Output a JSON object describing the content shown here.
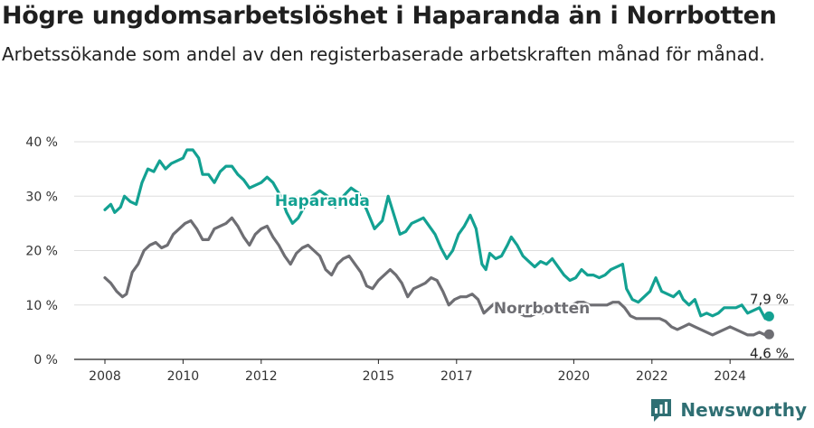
{
  "title": "Högre ungdomsarbetslöshet i Haparanda än i Norrbotten",
  "subtitle": "Arbetssökande som andel av den registerbaserade arbetskraften månad för månad.",
  "brand": "Newsworthy",
  "colors": {
    "haparanda": "#13a192",
    "norrbotten": "#6e6e73",
    "grid": "#dddddd",
    "brand": "#2f6f73"
  },
  "chart_data": {
    "type": "line",
    "title": "Högre ungdomsarbetslöshet i Haparanda än i Norrbotten",
    "xlabel": "",
    "ylabel": "",
    "xlim": [
      2007.8,
      2025.5
    ],
    "ylim": [
      0,
      40
    ],
    "grid": true,
    "y_ticks": [
      {
        "value": 0,
        "label": "0 %"
      },
      {
        "value": 10,
        "label": "10 %"
      },
      {
        "value": 20,
        "label": "20 %"
      },
      {
        "value": 30,
        "label": "30 %"
      },
      {
        "value": 40,
        "label": "40 %"
      }
    ],
    "x_ticks": [
      {
        "value": 2008,
        "label": "2008"
      },
      {
        "value": 2010,
        "label": "2010"
      },
      {
        "value": 2012,
        "label": "2012"
      },
      {
        "value": 2015,
        "label": "2015"
      },
      {
        "value": 2017,
        "label": "2017"
      },
      {
        "value": 2020,
        "label": "2020"
      },
      {
        "value": 2022,
        "label": "2022"
      },
      {
        "value": 2024,
        "label": "2024"
      }
    ],
    "series": [
      {
        "name": "Haparanda",
        "label": "Haparanda",
        "color": "#13a192",
        "end_label": "7,9 %",
        "points": [
          [
            2008.0,
            27.5
          ],
          [
            2008.15,
            28.5
          ],
          [
            2008.25,
            27.0
          ],
          [
            2008.4,
            28.0
          ],
          [
            2008.5,
            30.0
          ],
          [
            2008.65,
            29.0
          ],
          [
            2008.8,
            28.5
          ],
          [
            2008.95,
            32.5
          ],
          [
            2009.1,
            35.0
          ],
          [
            2009.25,
            34.5
          ],
          [
            2009.4,
            36.5
          ],
          [
            2009.55,
            35.0
          ],
          [
            2009.7,
            36.0
          ],
          [
            2009.85,
            36.5
          ],
          [
            2010.0,
            37.0
          ],
          [
            2010.1,
            38.5
          ],
          [
            2010.25,
            38.5
          ],
          [
            2010.4,
            37.0
          ],
          [
            2010.5,
            34.0
          ],
          [
            2010.65,
            34.0
          ],
          [
            2010.8,
            32.5
          ],
          [
            2010.95,
            34.5
          ],
          [
            2011.1,
            35.5
          ],
          [
            2011.25,
            35.5
          ],
          [
            2011.4,
            34.0
          ],
          [
            2011.55,
            33.0
          ],
          [
            2011.7,
            31.5
          ],
          [
            2011.85,
            32.0
          ],
          [
            2012.0,
            32.5
          ],
          [
            2012.15,
            33.5
          ],
          [
            2012.3,
            32.5
          ],
          [
            2012.5,
            30.0
          ],
          [
            2012.65,
            27.0
          ],
          [
            2012.8,
            25.0
          ],
          [
            2012.95,
            26.0
          ],
          [
            2013.1,
            28.0
          ],
          [
            2013.3,
            30.0
          ],
          [
            2013.5,
            31.0
          ],
          [
            2013.7,
            30.0
          ],
          [
            2013.9,
            28.0
          ],
          [
            2014.1,
            30.0
          ],
          [
            2014.3,
            31.5
          ],
          [
            2014.5,
            30.5
          ],
          [
            2014.7,
            27.5
          ],
          [
            2014.9,
            24.0
          ],
          [
            2015.1,
            25.5
          ],
          [
            2015.25,
            30.0
          ],
          [
            2015.4,
            26.5
          ],
          [
            2015.55,
            23.0
          ],
          [
            2015.7,
            23.5
          ],
          [
            2015.85,
            25.0
          ],
          [
            2016.0,
            25.5
          ],
          [
            2016.15,
            26.0
          ],
          [
            2016.3,
            24.5
          ],
          [
            2016.45,
            23.0
          ],
          [
            2016.6,
            20.5
          ],
          [
            2016.75,
            18.5
          ],
          [
            2016.9,
            20.0
          ],
          [
            2017.05,
            23.0
          ],
          [
            2017.2,
            24.5
          ],
          [
            2017.35,
            26.5
          ],
          [
            2017.5,
            24.0
          ],
          [
            2017.65,
            17.5
          ],
          [
            2017.75,
            16.5
          ],
          [
            2017.85,
            19.5
          ],
          [
            2018.0,
            18.5
          ],
          [
            2018.15,
            19.0
          ],
          [
            2018.3,
            21.0
          ],
          [
            2018.4,
            22.5
          ],
          [
            2018.55,
            21.0
          ],
          [
            2018.7,
            19.0
          ],
          [
            2018.85,
            18.0
          ],
          [
            2019.0,
            17.0
          ],
          [
            2019.15,
            18.0
          ],
          [
            2019.3,
            17.5
          ],
          [
            2019.45,
            18.5
          ],
          [
            2019.6,
            17.0
          ],
          [
            2019.75,
            15.5
          ],
          [
            2019.9,
            14.5
          ],
          [
            2020.05,
            15.0
          ],
          [
            2020.2,
            16.5
          ],
          [
            2020.35,
            15.5
          ],
          [
            2020.5,
            15.5
          ],
          [
            2020.65,
            15.0
          ],
          [
            2020.8,
            15.5
          ],
          [
            2020.95,
            16.5
          ],
          [
            2021.1,
            17.0
          ],
          [
            2021.25,
            17.5
          ],
          [
            2021.35,
            13.0
          ],
          [
            2021.5,
            11.0
          ],
          [
            2021.65,
            10.5
          ],
          [
            2021.8,
            11.5
          ],
          [
            2021.95,
            12.5
          ],
          [
            2022.1,
            15.0
          ],
          [
            2022.25,
            12.5
          ],
          [
            2022.4,
            12.0
          ],
          [
            2022.55,
            11.5
          ],
          [
            2022.7,
            12.5
          ],
          [
            2022.8,
            11.0
          ],
          [
            2022.95,
            10.0
          ],
          [
            2023.1,
            11.0
          ],
          [
            2023.25,
            8.0
          ],
          [
            2023.4,
            8.5
          ],
          [
            2023.55,
            8.0
          ],
          [
            2023.7,
            8.5
          ],
          [
            2023.85,
            9.5
          ],
          [
            2024.0,
            9.5
          ],
          [
            2024.15,
            9.5
          ],
          [
            2024.3,
            10.0
          ],
          [
            2024.45,
            8.5
          ],
          [
            2024.6,
            9.0
          ],
          [
            2024.75,
            9.5
          ],
          [
            2024.9,
            7.5
          ],
          [
            2025.0,
            7.9
          ]
        ]
      },
      {
        "name": "Norrbotten",
        "label": "Norrbotten",
        "color": "#6e6e73",
        "end_label": "4,6 %",
        "points": [
          [
            2008.0,
            15.0
          ],
          [
            2008.15,
            14.0
          ],
          [
            2008.3,
            12.5
          ],
          [
            2008.45,
            11.5
          ],
          [
            2008.55,
            12.0
          ],
          [
            2008.7,
            16.0
          ],
          [
            2008.85,
            17.5
          ],
          [
            2009.0,
            20.0
          ],
          [
            2009.15,
            21.0
          ],
          [
            2009.3,
            21.5
          ],
          [
            2009.45,
            20.5
          ],
          [
            2009.6,
            21.0
          ],
          [
            2009.75,
            23.0
          ],
          [
            2009.9,
            24.0
          ],
          [
            2010.05,
            25.0
          ],
          [
            2010.2,
            25.5
          ],
          [
            2010.35,
            24.0
          ],
          [
            2010.5,
            22.0
          ],
          [
            2010.65,
            22.0
          ],
          [
            2010.8,
            24.0
          ],
          [
            2010.95,
            24.5
          ],
          [
            2011.1,
            25.0
          ],
          [
            2011.25,
            26.0
          ],
          [
            2011.4,
            24.5
          ],
          [
            2011.55,
            22.5
          ],
          [
            2011.7,
            21.0
          ],
          [
            2011.85,
            23.0
          ],
          [
            2012.0,
            24.0
          ],
          [
            2012.15,
            24.5
          ],
          [
            2012.3,
            22.5
          ],
          [
            2012.45,
            21.0
          ],
          [
            2012.6,
            19.0
          ],
          [
            2012.75,
            17.5
          ],
          [
            2012.9,
            19.5
          ],
          [
            2013.05,
            20.5
          ],
          [
            2013.2,
            21.0
          ],
          [
            2013.35,
            20.0
          ],
          [
            2013.5,
            19.0
          ],
          [
            2013.65,
            16.5
          ],
          [
            2013.8,
            15.5
          ],
          [
            2013.95,
            17.5
          ],
          [
            2014.1,
            18.5
          ],
          [
            2014.25,
            19.0
          ],
          [
            2014.4,
            17.5
          ],
          [
            2014.55,
            16.0
          ],
          [
            2014.7,
            13.5
          ],
          [
            2014.85,
            13.0
          ],
          [
            2015.0,
            14.5
          ],
          [
            2015.15,
            15.5
          ],
          [
            2015.3,
            16.5
          ],
          [
            2015.45,
            15.5
          ],
          [
            2015.6,
            14.0
          ],
          [
            2015.75,
            11.5
          ],
          [
            2015.9,
            13.0
          ],
          [
            2016.05,
            13.5
          ],
          [
            2016.2,
            14.0
          ],
          [
            2016.35,
            15.0
          ],
          [
            2016.5,
            14.5
          ],
          [
            2016.65,
            12.5
          ],
          [
            2016.8,
            10.0
          ],
          [
            2016.95,
            11.0
          ],
          [
            2017.1,
            11.5
          ],
          [
            2017.25,
            11.5
          ],
          [
            2017.4,
            12.0
          ],
          [
            2017.55,
            11.0
          ],
          [
            2017.7,
            8.5
          ],
          [
            2017.85,
            9.5
          ],
          [
            2018.0,
            10.5
          ],
          [
            2018.15,
            10.0
          ],
          [
            2018.3,
            9.5
          ],
          [
            2018.45,
            9.0
          ],
          [
            2018.6,
            8.5
          ],
          [
            2018.75,
            8.0
          ],
          [
            2018.9,
            8.0
          ],
          [
            2019.05,
            8.5
          ],
          [
            2019.2,
            8.5
          ],
          [
            2019.35,
            9.0
          ],
          [
            2019.5,
            9.5
          ],
          [
            2019.65,
            9.5
          ],
          [
            2019.8,
            9.5
          ],
          [
            2019.95,
            10.0
          ],
          [
            2020.1,
            10.5
          ],
          [
            2020.25,
            10.5
          ],
          [
            2020.4,
            10.0
          ],
          [
            2020.55,
            10.0
          ],
          [
            2020.7,
            10.0
          ],
          [
            2020.85,
            10.0
          ],
          [
            2021.0,
            10.5
          ],
          [
            2021.15,
            10.5
          ],
          [
            2021.3,
            9.5
          ],
          [
            2021.45,
            8.0
          ],
          [
            2021.6,
            7.5
          ],
          [
            2021.75,
            7.5
          ],
          [
            2021.9,
            7.5
          ],
          [
            2022.05,
            7.5
          ],
          [
            2022.2,
            7.5
          ],
          [
            2022.35,
            7.0
          ],
          [
            2022.5,
            6.0
          ],
          [
            2022.65,
            5.5
          ],
          [
            2022.8,
            6.0
          ],
          [
            2022.95,
            6.5
          ],
          [
            2023.1,
            6.0
          ],
          [
            2023.25,
            5.5
          ],
          [
            2023.4,
            5.0
          ],
          [
            2023.55,
            4.5
          ],
          [
            2023.7,
            5.0
          ],
          [
            2023.85,
            5.5
          ],
          [
            2024.0,
            6.0
          ],
          [
            2024.15,
            5.5
          ],
          [
            2024.3,
            5.0
          ],
          [
            2024.45,
            4.5
          ],
          [
            2024.6,
            4.5
          ],
          [
            2024.75,
            5.0
          ],
          [
            2024.9,
            4.5
          ],
          [
            2025.0,
            4.6
          ]
        ]
      }
    ]
  }
}
